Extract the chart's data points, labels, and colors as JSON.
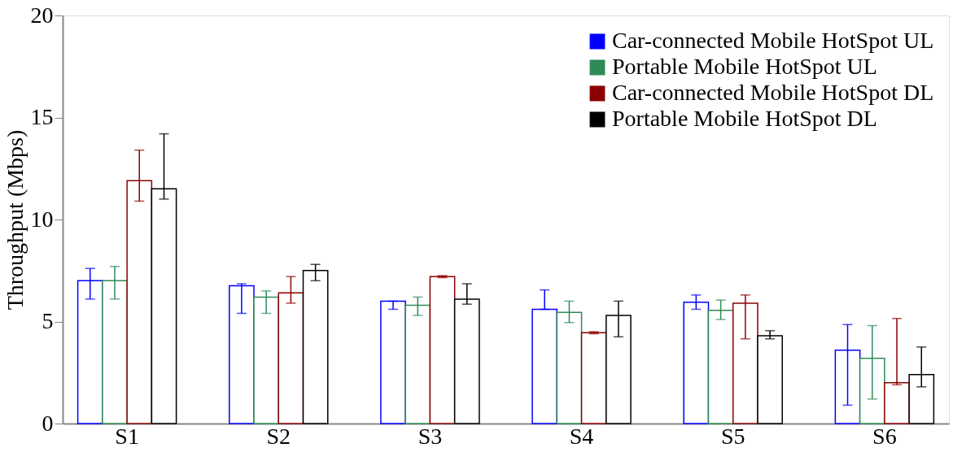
{
  "chart_data": {
    "type": "bar",
    "ylabel": "Throughput (Mbps)",
    "categories": [
      "S1",
      "S2",
      "S3",
      "S4",
      "S5",
      "S6"
    ],
    "ylim": [
      0,
      20
    ],
    "yticks": [
      0,
      5,
      10,
      15,
      20
    ],
    "grid": false,
    "legend": "top right",
    "series": [
      {
        "name": "Car-connected Mobile HotSpot UL",
        "color": "#0000ff",
        "values": [
          7.0,
          6.75,
          6.0,
          5.6,
          5.95,
          3.6
        ],
        "errors": [
          [
            6.1,
            7.6
          ],
          [
            5.4,
            6.85
          ],
          [
            5.6,
            6.0
          ],
          [
            5.6,
            6.55
          ],
          [
            5.6,
            6.3
          ],
          [
            0.9,
            4.85
          ]
        ]
      },
      {
        "name": "Portable Mobile HotSpot UL",
        "color": "#2e8b57",
        "values": [
          7.0,
          6.2,
          5.8,
          5.45,
          5.55,
          3.2
        ],
        "errors": [
          [
            6.1,
            7.7
          ],
          [
            5.4,
            6.5
          ],
          [
            5.3,
            6.2
          ],
          [
            4.95,
            6.0
          ],
          [
            5.1,
            6.05
          ],
          [
            1.2,
            4.8
          ]
        ]
      },
      {
        "name": "Car-connected Mobile HotSpot DL",
        "color": "#8b0000",
        "values": [
          11.9,
          6.4,
          7.2,
          4.45,
          5.9,
          2.0
        ],
        "errors": [
          [
            10.9,
            13.4
          ],
          [
            5.9,
            7.2
          ],
          [
            7.15,
            7.25
          ],
          [
            4.4,
            4.5
          ],
          [
            4.15,
            6.3
          ],
          [
            1.9,
            5.15
          ]
        ]
      },
      {
        "name": "Portable Mobile HotSpot DL",
        "color": "#000000",
        "values": [
          11.5,
          7.5,
          6.1,
          5.3,
          4.3,
          2.4
        ],
        "errors": [
          [
            11.0,
            14.2
          ],
          [
            7.0,
            7.8
          ],
          [
            5.85,
            6.85
          ],
          [
            4.25,
            6.0
          ],
          [
            4.15,
            4.55
          ],
          [
            1.8,
            3.75
          ]
        ]
      }
    ]
  }
}
